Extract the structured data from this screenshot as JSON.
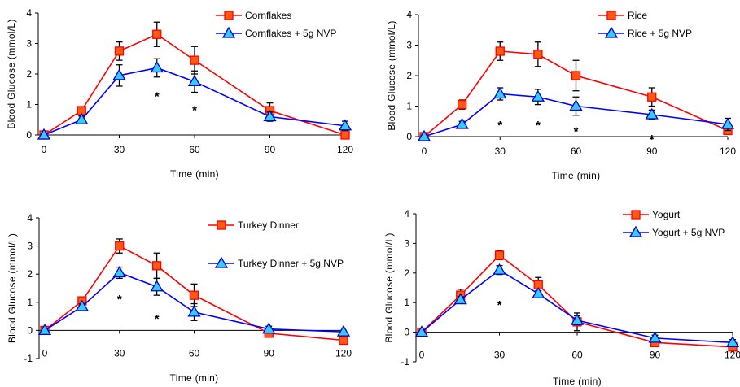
{
  "colors": {
    "series_a": "#ff0000",
    "series_a_marker": "#ff5a14",
    "series_b": "#0000ff",
    "series_b_marker": "#33ccff",
    "error_bar": "#000000"
  },
  "chart_data": [
    {
      "type": "line",
      "xlabel": "Time (min)",
      "ylabel": "Blood Glucose (mmol/L)",
      "xticks": [
        0,
        30,
        60,
        90,
        120
      ],
      "yticks": [
        0,
        1,
        2,
        3,
        4
      ],
      "xlim": [
        0,
        120
      ],
      "ylim": [
        0,
        4
      ],
      "legend_position": "top-right",
      "series": [
        {
          "name": "Cornflakes",
          "marker": "square",
          "x": [
            0,
            15,
            30,
            45,
            60,
            90,
            120
          ],
          "y": [
            0,
            0.8,
            2.75,
            3.3,
            2.45,
            0.8,
            0.0
          ],
          "err": [
            0,
            0.08,
            0.3,
            0.4,
            0.45,
            0.25,
            0
          ]
        },
        {
          "name": "Cornflakes + 5g NVP",
          "marker": "triangle",
          "x": [
            0,
            15,
            30,
            45,
            60,
            90,
            120
          ],
          "y": [
            0,
            0.5,
            1.95,
            2.2,
            1.75,
            0.6,
            0.3
          ],
          "err": [
            0,
            0.12,
            0.35,
            0.3,
            0.35,
            0.15,
            0.15
          ]
        }
      ],
      "annotations": [
        {
          "text": "*",
          "x": 45,
          "y": 1.35
        },
        {
          "text": "*",
          "x": 60,
          "y": 0.9
        }
      ]
    },
    {
      "type": "line",
      "xlabel": "Time (min)",
      "ylabel": "Blood Glucose (mmol/L)",
      "xticks": [
        0,
        30,
        60,
        90,
        120
      ],
      "yticks": [
        0,
        1,
        2,
        3,
        4
      ],
      "xlim": [
        0,
        120
      ],
      "ylim": [
        0,
        4
      ],
      "legend_position": "top-right",
      "series": [
        {
          "name": "Rice",
          "marker": "square",
          "x": [
            0,
            15,
            30,
            45,
            60,
            90,
            120
          ],
          "y": [
            0,
            1.05,
            2.8,
            2.7,
            2.0,
            1.3,
            0.2
          ],
          "err": [
            0,
            0.15,
            0.3,
            0.4,
            0.5,
            0.3,
            0.1
          ]
        },
        {
          "name": "Rice + 5g NVP",
          "marker": "triangle",
          "x": [
            0,
            15,
            30,
            45,
            60,
            90,
            120
          ],
          "y": [
            0,
            0.4,
            1.4,
            1.3,
            1.0,
            0.72,
            0.4
          ],
          "err": [
            0,
            0.1,
            0.2,
            0.25,
            0.3,
            0.15,
            0.2
          ]
        }
      ],
      "annotations": [
        {
          "text": "*",
          "x": 30,
          "y": 0.45
        },
        {
          "text": "*",
          "x": 45,
          "y": 0.45
        },
        {
          "text": "*",
          "x": 60,
          "y": 0.25
        },
        {
          "text": "*",
          "x": 90,
          "y": 0.0
        }
      ]
    },
    {
      "type": "line",
      "xlabel": "Time (min)",
      "ylabel": "Blood Glucose (mmol/L)",
      "xticks": [
        0,
        30,
        60,
        90,
        120
      ],
      "yticks": [
        -1,
        0,
        1,
        2,
        3,
        4
      ],
      "xlim": [
        0,
        120
      ],
      "ylim": [
        -1,
        4
      ],
      "legend_position": "top-right",
      "series": [
        {
          "name": "Turkey Dinner",
          "marker": "square",
          "x": [
            0,
            15,
            30,
            45,
            60,
            90,
            120
          ],
          "y": [
            0,
            1.05,
            3.0,
            2.3,
            1.25,
            -0.1,
            -0.35
          ],
          "err": [
            0,
            0.1,
            0.25,
            0.45,
            0.4,
            0.1,
            0.1
          ]
        },
        {
          "name": "Turkey Dinner + 5g NVP",
          "marker": "triangle",
          "x": [
            0,
            15,
            30,
            45,
            60,
            90,
            120
          ],
          "y": [
            0,
            0.85,
            2.05,
            1.55,
            0.65,
            0.05,
            -0.05
          ],
          "err": [
            0,
            0.1,
            0.2,
            0.3,
            0.3,
            0.1,
            0.05
          ]
        }
      ],
      "annotations": [
        {
          "text": "*",
          "x": 30,
          "y": 1.2
        },
        {
          "text": "*",
          "x": 45,
          "y": 0.5
        }
      ]
    },
    {
      "type": "line",
      "xlabel": "Time (min)",
      "ylabel": "Blood Glucose (mmol/L)",
      "xticks": [
        0,
        30,
        60,
        90,
        120
      ],
      "yticks": [
        -1,
        0,
        1,
        2,
        3,
        4
      ],
      "xlim": [
        0,
        120
      ],
      "ylim": [
        -1,
        4
      ],
      "legend_position": "top-right",
      "series": [
        {
          "name": "Yogurt",
          "marker": "square",
          "x": [
            0,
            15,
            30,
            45,
            60,
            90,
            120
          ],
          "y": [
            0,
            1.25,
            2.6,
            1.6,
            0.35,
            -0.35,
            -0.5
          ],
          "err": [
            0,
            0.2,
            0.15,
            0.25,
            0.3,
            0.1,
            0.1
          ]
        },
        {
          "name": "Yogurt + 5g NVP",
          "marker": "triangle",
          "x": [
            0,
            15,
            30,
            45,
            60,
            90,
            120
          ],
          "y": [
            0,
            1.1,
            2.1,
            1.3,
            0.4,
            -0.2,
            -0.35
          ],
          "err": [
            0,
            0.1,
            0.15,
            0.1,
            0.15,
            0.1,
            0.1
          ]
        }
      ],
      "annotations": [
        {
          "text": "*",
          "x": 30,
          "y": 1.0
        }
      ]
    }
  ]
}
